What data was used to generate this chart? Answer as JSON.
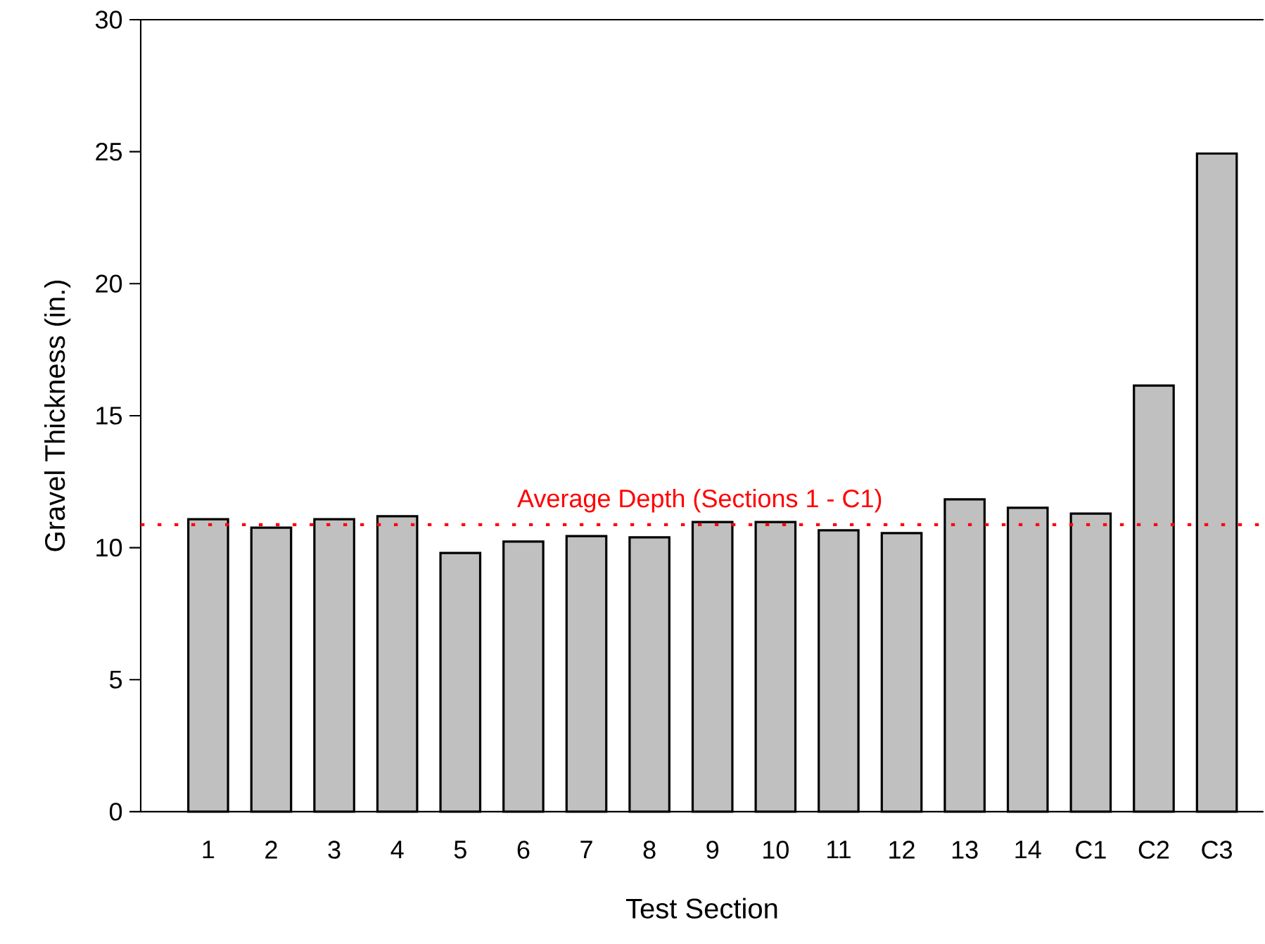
{
  "chart_data": {
    "type": "bar",
    "xlabel": "Test Section",
    "ylabel": "Gravel Thickness (in.)",
    "categories": [
      "1",
      "2",
      "3",
      "4",
      "5",
      "6",
      "7",
      "8",
      "9",
      "10",
      "11",
      "12",
      "13",
      "14",
      "C1",
      "C2",
      "C3"
    ],
    "values": [
      11.08,
      10.76,
      11.08,
      11.19,
      9.8,
      10.23,
      10.44,
      10.39,
      10.97,
      10.97,
      10.66,
      10.55,
      11.83,
      11.51,
      11.29,
      16.14,
      24.93
    ],
    "color": "#c0c0c0",
    "ylim": [
      0,
      30
    ],
    "yticks": [
      0,
      5,
      10,
      15,
      20,
      25,
      30
    ],
    "ref_lines": [
      {
        "axis": "y",
        "value": 10.87,
        "label": "Average Depth (Sections 1 - C1)",
        "color": "#ff0000",
        "line_style": "dotted"
      }
    ],
    "grid": false
  }
}
